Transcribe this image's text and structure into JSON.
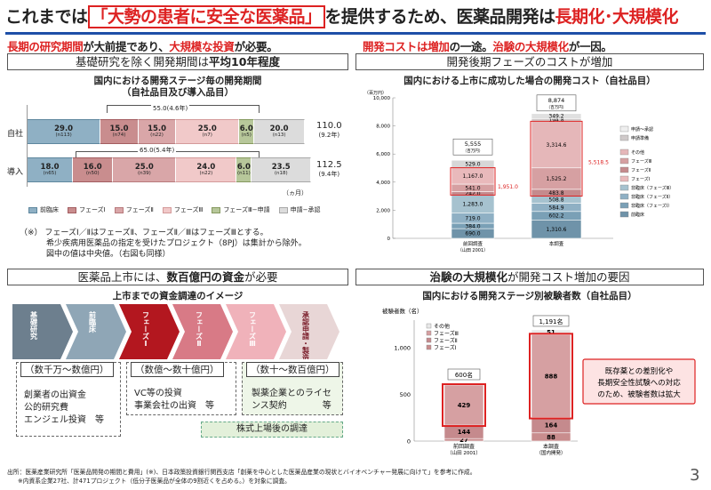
{
  "title": {
    "p1": "これまでは",
    "hl": "「大勢の患者に安全な医薬品」",
    "p2": "を提供するため、医薬品開発は",
    "red": "長期化･大規模化"
  },
  "sub_left": {
    "r1": "長期の研究期間",
    "t1": "が大前提であり、",
    "r2": "大規模な投資",
    "t2": "が必要。"
  },
  "sub_right": {
    "r1": "開発コストは増加",
    "t1": "の一途。",
    "r2": "治験の大規模化",
    "t2": "が一因。"
  },
  "tl": {
    "head_pre": "基礎研究を除く開発期間は",
    "head_bold": "平均10年程度",
    "chart_title1": "国内における開発ステージ毎の開発期間",
    "chart_title2": "（自社品目及び導入品目）",
    "unit": "（ヵ月）",
    "rows": [
      {
        "label": "自社",
        "span": "55.0(4.6年)",
        "total": "110.0",
        "years": "(9.2年)",
        "segs": [
          {
            "v": "29.0",
            "n": "(n113)"
          },
          {
            "v": "15.0",
            "n": "(n74)"
          },
          {
            "v": "15.0",
            "n": "(n22)"
          },
          {
            "v": "25.0",
            "n": "(n7)"
          },
          {
            "v": "6.0",
            "n": "(n5)"
          },
          {
            "v": "20.0",
            "n": "(n13)"
          }
        ]
      },
      {
        "label": "導入",
        "span": "65.0(5.4年)",
        "total": "112.5",
        "years": "(9.4年)",
        "segs": [
          {
            "v": "18.0",
            "n": "(n65)"
          },
          {
            "v": "16.0",
            "n": "(n50)"
          },
          {
            "v": "25.0",
            "n": "(n39)"
          },
          {
            "v": "24.0",
            "n": "(n22)"
          },
          {
            "v": "6.0",
            "n": "(n11)"
          },
          {
            "v": "23.5",
            "n": "(n18)"
          }
        ]
      }
    ],
    "legend": [
      "前臨床",
      "フェーズⅠ",
      "フェーズⅡ",
      "フェーズⅢ",
      "フェーズⅢ−申請",
      "申請−承認"
    ],
    "notes": [
      "（※） フェーズⅠ／ⅡはフェーズⅡ、フェーズⅡ／ⅢはフェーズⅢとする。",
      "希少疾病用医薬品の指定を受けたプロジェクト（8PJ）は集計から除外。",
      "図中の値は中央値。（右図も同様）"
    ]
  },
  "tr": {
    "head": "開発後期フェーズのコストが増加",
    "chart_title": "国内における上市に成功した場合の開発コスト（自社品目）",
    "unit": "（百万円）",
    "yticks": [
      "10,000",
      "8,000",
      "6,000",
      "4,000",
      "2,000",
      "0"
    ],
    "bar1": {
      "total": "5,555",
      "unit": "（百万円）",
      "label1": "前回調査",
      "label2": "（山田 2001）",
      "segs": [
        "529.0",
        "1,167.0",
        "541.0",
        "242.0",
        "1,283.0",
        "719.0",
        "384.0",
        "690.0"
      ]
    },
    "bar2": {
      "total": "8,874",
      "unit": "（百万円）",
      "label1": "本調査",
      "segs": [
        "349.2",
        "194.8",
        "3,314.6",
        "1,525.2",
        "483.8",
        "508.8",
        "584.9",
        "602.2",
        "1,310.6"
      ]
    },
    "diff1": "1,951.0",
    "diff2": "5,518.5",
    "legend": [
      "申請～承認",
      "申請準備",
      "その他",
      "フェーズⅢ",
      "フェーズⅡ",
      "フェーズⅠ",
      "非臨床（フェーズⅢ）",
      "非臨床（フェーズⅡ）",
      "非臨床（フェーズⅠ）",
      "前臨床"
    ]
  },
  "bl": {
    "head_pre": "医薬品上市には、",
    "head_bold": "数百億円の資金",
    "head_post": "が必要",
    "chart_title": "上市までの資金調達のイメージ",
    "stages": [
      "基礎研究",
      "前臨床",
      "フェーズⅠ",
      "フェーズⅡ",
      "フェーズⅢ",
      "承認申請・製造販売"
    ],
    "boxes": [
      {
        "hdr": "（数千万～数億円）",
        "lines": [
          "創業者の出資金",
          "公的研究費",
          "エンジェル投資　等"
        ]
      },
      {
        "hdr": "（数億～数十億円）",
        "lines": [
          "VC等の投資",
          "事業会社の出資　等"
        ]
      },
      {
        "hdr": "（数十～数百億円）",
        "lines": [
          "製薬企業とのライセ",
          "ンス契約　　　　等"
        ]
      }
    ],
    "ipo": "株式上場後の調達"
  },
  "br": {
    "head_pre": "治験の大規模化",
    "head_post": "が開発コスト増加の要因",
    "chart_title": "国内における開発ステージ別被験者数（自社品目）",
    "ylabel": "被験者数（名）",
    "yticks": [
      "1,000",
      "500",
      "0"
    ],
    "legend": [
      "その他",
      "フェーズⅢ",
      "フェーズⅡ",
      "フェーズⅠ"
    ],
    "bar1": {
      "total": "600名",
      "segs": [
        "429",
        "144",
        "27"
      ],
      "label1": "前回調査",
      "label2": "（山田 2001）"
    },
    "bar2": {
      "total": "1,191名",
      "segs": [
        "51",
        "888",
        "164",
        "88"
      ],
      "label1": "本調査",
      "label2": "（国内開発）"
    },
    "callout": [
      "既存薬との差別化や",
      "長期安全性試験への対応",
      "のため、被験者数は拡大"
    ]
  },
  "footnotes": [
    "出所：医薬産業研究所「医薬品開発の期間と費用」(※)、日本政策投資銀行関西支店「創薬を中心とした医薬品産業の現状とバイオベンチャー発展に向けて」を参考に作成。",
    "※内資系企業27社、計471プロジェクト（低分子医薬品が全体の9割近くを占める。）を対象に調査。"
  ],
  "page_number": "3",
  "colors": {
    "red": "#d22222",
    "blue": "#1e4fa8"
  }
}
